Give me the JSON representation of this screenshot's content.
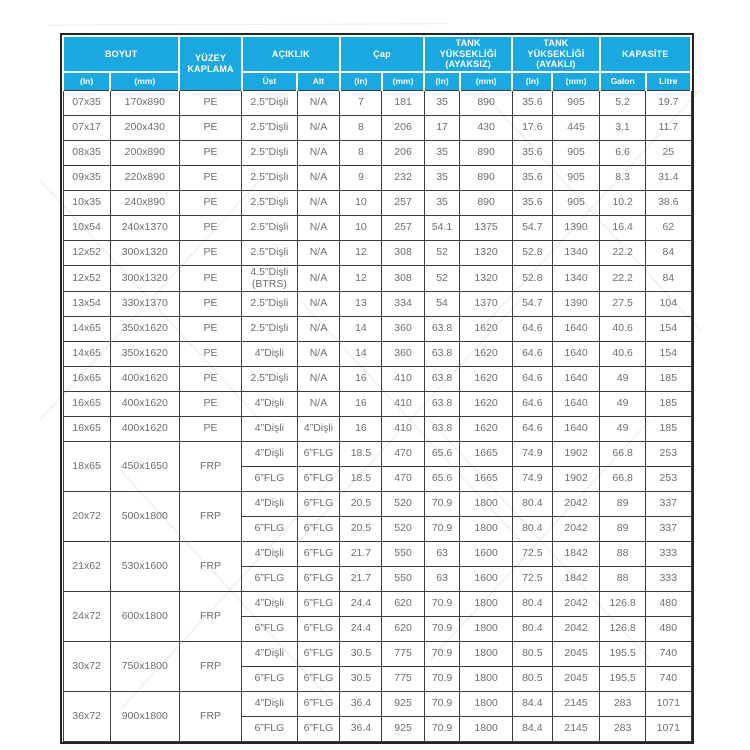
{
  "page": {
    "background_color": "#ffffff",
    "accent_color": "#1BA7DF",
    "grid_border_color": "#3d3d3d",
    "body_text_color": "#6e6e6e"
  },
  "table": {
    "header": {
      "groups": [
        {
          "label": "BOYUT",
          "cols": 2
        },
        {
          "label": "YÜZEY KAPLAMA",
          "cols": 1
        },
        {
          "label": "AÇIKLIK",
          "cols": 2
        },
        {
          "label": "Çap",
          "cols": 2
        },
        {
          "label": "TANK YÜKSEKLİĞİ (AYAKSIZ)",
          "cols": 2
        },
        {
          "label": "TANK YÜKSEKLİĞİ (AYAKLI)",
          "cols": 2
        },
        {
          "label": "KAPASİTE",
          "cols": 2
        }
      ],
      "sub": {
        "in": "(In)",
        "mm": "(mm)",
        "ust": "Üst",
        "alt": "Alt",
        "galon": "Galon",
        "litre": "Litre"
      }
    },
    "rows": [
      {
        "cells": [
          "07x35",
          "170x890",
          "PE",
          "2.5”Dişli",
          "N/A",
          "7",
          "181",
          "35",
          "890",
          "35.6",
          "905",
          "5.2",
          "19.7"
        ]
      },
      {
        "cells": [
          "07x17",
          "200x430",
          "PE",
          "2.5”Dişli",
          "N/A",
          "8",
          "206",
          "17",
          "430",
          "17.6",
          "445",
          "3.1",
          "11.7"
        ]
      },
      {
        "cells": [
          "08x35",
          "200x890",
          "PE",
          "2.5”Dişli",
          "N/A",
          "8",
          "206",
          "35",
          "890",
          "35.6",
          "905",
          "6.6",
          "25"
        ]
      },
      {
        "cells": [
          "09x35",
          "220x890",
          "PE",
          "2.5”Dişli",
          "N/A",
          "9",
          "232",
          "35",
          "890",
          "35.6",
          "905",
          "8.3",
          "31.4"
        ]
      },
      {
        "cells": [
          "10x35",
          "240x890",
          "PE",
          "2.5”Dişli",
          "N/A",
          "10",
          "257",
          "35",
          "890",
          "35.6",
          "905",
          "10.2",
          "38.6"
        ]
      },
      {
        "cells": [
          "10x54",
          "240x1370",
          "PE",
          "2.5”Dişli",
          "N/A",
          "10",
          "257",
          "54.1",
          "1375",
          "54.7",
          "1390",
          "16.4",
          "62"
        ]
      },
      {
        "cells": [
          "12x52",
          "300x1320",
          "PE",
          "2.5”Dişli",
          "N/A",
          "12",
          "308",
          "52",
          "1320",
          "52.8",
          "1340",
          "22.2",
          "84"
        ]
      },
      {
        "cells": [
          "12x52",
          "300x1320",
          "PE",
          "4.5”Dişli (BTRS)",
          "N/A",
          "12",
          "308",
          "52",
          "1320",
          "52.8",
          "1340",
          "22.2",
          "84"
        ]
      },
      {
        "cells": [
          "13x54",
          "330x1370",
          "PE",
          "2.5”Dişli",
          "N/A",
          "13",
          "334",
          "54",
          "1370",
          "54.7",
          "1390",
          "27.5",
          "104"
        ]
      },
      {
        "cells": [
          "14x65",
          "350x1620",
          "PE",
          "2.5”Dişli",
          "N/A",
          "14",
          "360",
          "63.8",
          "1620",
          "64.6",
          "1640",
          "40.6",
          "154"
        ]
      },
      {
        "cells": [
          "14x65",
          "350x1620",
          "PE",
          "4”Dişli",
          "N/A",
          "14",
          "360",
          "63.8",
          "1620",
          "64.6",
          "1640",
          "40.6",
          "154"
        ]
      },
      {
        "cells": [
          "16x65",
          "400x1620",
          "PE",
          "2.5”Dişli",
          "N/A",
          "16",
          "410",
          "63.8",
          "1620",
          "64.6",
          "1640",
          "49",
          "185"
        ]
      },
      {
        "cells": [
          "16x65",
          "400x1620",
          "PE",
          "4”Dişli",
          "N/A",
          "16",
          "410",
          "63.8",
          "1620",
          "64.6",
          "1640",
          "49",
          "185"
        ]
      },
      {
        "cells": [
          "16x65",
          "400x1620",
          "PE",
          "4”Dişli",
          "4”Dişli",
          "16",
          "410",
          "63.8",
          "1620",
          "64.6",
          "1640",
          "49",
          "185"
        ]
      },
      {
        "merge_first3": 2,
        "cells": [
          "18x65",
          "450x1650",
          "FRP",
          "4”Dişli",
          "6”FLG",
          "18.5",
          "470",
          "65.6",
          "1665",
          "74.9",
          "1902",
          "66.8",
          "253"
        ]
      },
      {
        "cells": [
          "6”FLG",
          "6”FLG",
          "18.5",
          "470",
          "65.6",
          "1665",
          "74.9",
          "1902",
          "66.8",
          "253"
        ]
      },
      {
        "merge_first3": 2,
        "cells": [
          "20x72",
          "500x1800",
          "FRP",
          "4”Dişli",
          "6”FLG",
          "20.5",
          "520",
          "70.9",
          "1800",
          "80.4",
          "2042",
          "89",
          "337"
        ]
      },
      {
        "cells": [
          "6”FLG",
          "6”FLG",
          "20.5",
          "520",
          "70.9",
          "1800",
          "80.4",
          "2042",
          "89",
          "337"
        ]
      },
      {
        "merge_first3": 2,
        "cells": [
          "21x62",
          "530x1600",
          "FRP",
          "4”Dişli",
          "6”FLG",
          "21.7",
          "550",
          "63",
          "1600",
          "72.5",
          "1842",
          "88",
          "333"
        ]
      },
      {
        "cells": [
          "6”FLG",
          "6”FLG",
          "21.7",
          "550",
          "63",
          "1600",
          "72.5",
          "1842",
          "88",
          "333"
        ]
      },
      {
        "merge_first3": 2,
        "cells": [
          "24x72",
          "600x1800",
          "FRP",
          "4”Dişli",
          "6”FLG",
          "24.4",
          "620",
          "70.9",
          "1800",
          "80.4",
          "2042",
          "126.8",
          "480"
        ]
      },
      {
        "cells": [
          "6”FLG",
          "6”FLG",
          "24.4",
          "620",
          "70.9",
          "1800",
          "80.4",
          "2042",
          "126.8",
          "480"
        ]
      },
      {
        "merge_first3": 2,
        "cells": [
          "30x72",
          "750x1800",
          "FRP",
          "4”Dişli",
          "6”FLG",
          "30.5",
          "775",
          "70.9",
          "1800",
          "80.5",
          "2045",
          "195.5",
          "740"
        ]
      },
      {
        "cells": [
          "6”FLG",
          "6”FLG",
          "30.5",
          "775",
          "70.9",
          "1800",
          "80.5",
          "2045",
          "195.5",
          "740"
        ]
      },
      {
        "merge_first3": 2,
        "cells": [
          "36x72",
          "900x1800",
          "FRP",
          "4”Dişli",
          "6”FLG",
          "36.4",
          "925",
          "70.9",
          "1800",
          "84.4",
          "2145",
          "283",
          "1071"
        ]
      },
      {
        "cells": [
          "6”FLG",
          "6”FLG",
          "36.4",
          "925",
          "70.9",
          "1800",
          "84.4",
          "2145",
          "283",
          "1071"
        ]
      }
    ]
  }
}
